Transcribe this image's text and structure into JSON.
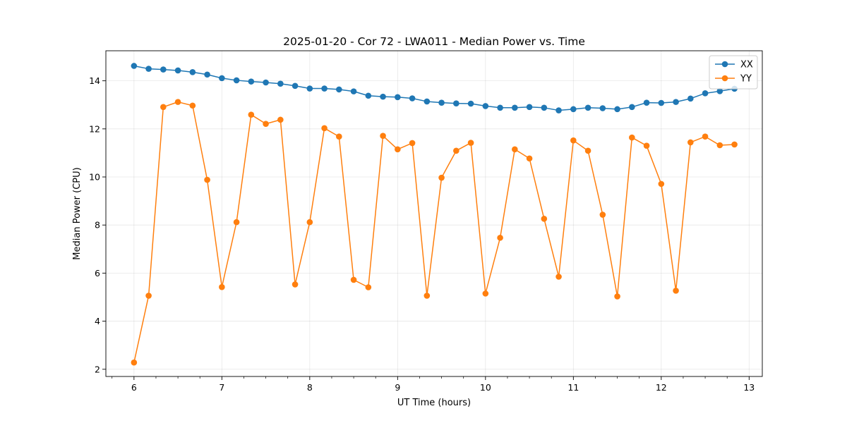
{
  "chart_data": {
    "type": "line",
    "title": "2025-01-20 - Cor 72 - LWA011 - Median Power vs. Time",
    "xlabel": "UT Time (hours)",
    "ylabel": "Median Power (CPU)",
    "xlim": [
      5.68,
      13.15
    ],
    "ylim": [
      1.7,
      15.25
    ],
    "xticks": [
      6,
      7,
      8,
      9,
      10,
      11,
      12,
      13
    ],
    "yticks": [
      2,
      4,
      6,
      8,
      10,
      12,
      14
    ],
    "grid": true,
    "legend_position": "top-right",
    "x": [
      6.0,
      6.1667,
      6.3333,
      6.5,
      6.6667,
      6.8333,
      7.0,
      7.1667,
      7.3333,
      7.5,
      7.6667,
      7.8333,
      8.0,
      8.1667,
      8.3333,
      8.5,
      8.6667,
      8.8333,
      9.0,
      9.1667,
      9.3333,
      9.5,
      9.6667,
      9.8333,
      10.0,
      10.1667,
      10.3333,
      10.5,
      10.6667,
      10.8333,
      11.0,
      11.1667,
      11.3333,
      11.5,
      11.6667,
      11.8333,
      12.0,
      12.1667,
      12.3333,
      12.5,
      12.6667,
      12.8333
    ],
    "series": [
      {
        "name": "XX",
        "color": "#1f77b4",
        "values": [
          14.62,
          14.5,
          14.47,
          14.43,
          14.36,
          14.26,
          14.11,
          14.02,
          13.97,
          13.93,
          13.88,
          13.79,
          13.68,
          13.68,
          13.64,
          13.56,
          13.38,
          13.34,
          13.32,
          13.27,
          13.14,
          13.09,
          13.06,
          13.05,
          12.95,
          12.88,
          12.88,
          12.91,
          12.88,
          12.77,
          12.82,
          12.88,
          12.86,
          12.82,
          12.91,
          13.09,
          13.08,
          13.12,
          13.26,
          13.48,
          13.57,
          13.67
        ]
      },
      {
        "name": "YY",
        "color": "#ff7f0e",
        "values": [
          2.28,
          5.06,
          12.91,
          13.12,
          12.97,
          9.88,
          5.42,
          8.12,
          12.59,
          12.21,
          12.38,
          5.53,
          8.12,
          12.03,
          11.68,
          5.72,
          5.41,
          11.71,
          11.15,
          11.41,
          5.06,
          9.97,
          11.09,
          11.42,
          5.15,
          7.47,
          11.15,
          10.77,
          8.26,
          5.85,
          11.52,
          11.09,
          8.43,
          5.03,
          11.64,
          11.3,
          9.71,
          5.27,
          11.44,
          11.68,
          11.32,
          11.35
        ]
      }
    ]
  }
}
